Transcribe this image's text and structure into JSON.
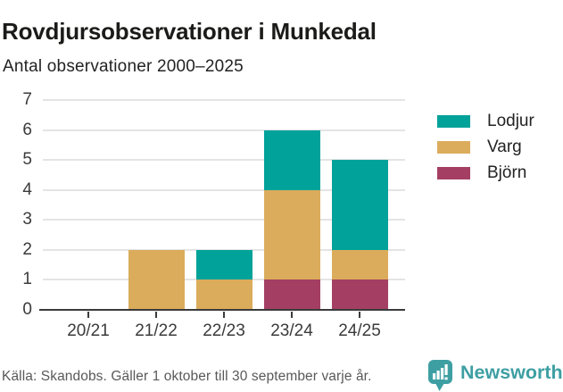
{
  "header": {
    "title": "Rovdjursobservationer i Munkedal",
    "subtitle": "Antal observationer 2000–2025"
  },
  "chart_data": {
    "type": "bar",
    "stacked": true,
    "title": "Rovdjursobservationer i Munkedal",
    "subtitle": "Antal observationer 2000–2025",
    "xlabel": "",
    "ylabel": "",
    "categories": [
      "20/21",
      "21/22",
      "22/23",
      "23/24",
      "24/25"
    ],
    "series": [
      {
        "name": "Björn",
        "color": "#a43f63",
        "values": [
          0,
          0,
          0,
          1,
          1
        ]
      },
      {
        "name": "Varg",
        "color": "#dbac5c",
        "values": [
          0,
          2,
          1,
          3,
          1
        ]
      },
      {
        "name": "Lodjur",
        "color": "#00a29a",
        "values": [
          0,
          0,
          1,
          2,
          3
        ]
      }
    ],
    "totals": [
      0,
      2,
      2,
      6,
      5
    ],
    "legend": [
      "Lodjur",
      "Varg",
      "Björn"
    ],
    "legend_position": "right",
    "ylim": [
      0,
      7
    ],
    "yticks": [
      0,
      1,
      2,
      3,
      4,
      5,
      6,
      7
    ],
    "grid": true
  },
  "footer": {
    "source": "Källa: Skandobs. Gäller 1 oktober till 30 september varje år.",
    "brand": "Newsworthy",
    "logo_icon": "newsworthy-speech-bubble-bar-chart"
  },
  "colors": {
    "axis": "#3b3b3b",
    "grid": "#e4e4e4",
    "text_dark": "#232323",
    "footer_text": "#595959",
    "brand_teal": "#3e9fa3"
  }
}
